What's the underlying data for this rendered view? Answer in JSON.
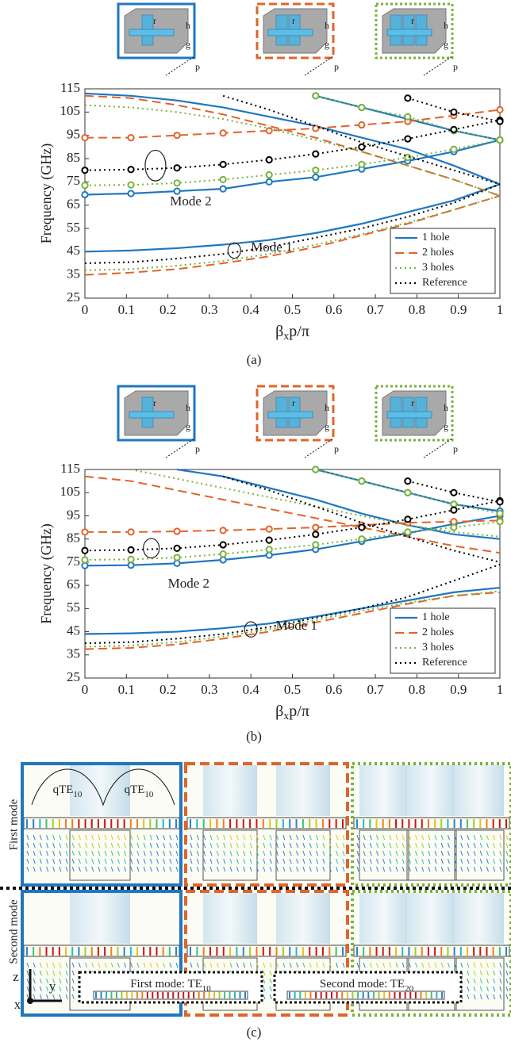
{
  "chart_data": [
    {
      "type": "line",
      "caption": "(a)",
      "x_label": [
        "β",
        "x",
        "p/π"
      ],
      "y_label": "Frequency (GHz)",
      "x": [
        0,
        0.111,
        0.222,
        0.333,
        0.444,
        0.556,
        0.667,
        0.778,
        0.889,
        1
      ],
      "xlim": [
        0,
        1
      ],
      "xticks": [
        0,
        0.1,
        0.2,
        0.3,
        0.4,
        0.5,
        0.6,
        0.7,
        0.8,
        0.9,
        1
      ],
      "ylim": [
        25,
        115
      ],
      "yticks": [
        25,
        35,
        45,
        55,
        65,
        75,
        85,
        95,
        105,
        115
      ],
      "legend": "lower right",
      "annotations": [
        "Mode 2",
        "Mode 1"
      ],
      "inset_labels": [
        "r",
        "h",
        "g",
        "p"
      ],
      "series": [
        {
          "name": "1 hole",
          "color": "#1f77c0",
          "style": "solid",
          "curves": [
            {
              "markers": false,
              "values": [
                45,
                45.5,
                46.5,
                48,
                50,
                53,
                57,
                62,
                67,
                74
              ]
            },
            {
              "markers": true,
              "values": [
                69.5,
                70,
                71,
                72,
                75,
                77,
                80.5,
                84,
                88,
                93
              ]
            },
            {
              "markers": false,
              "values": [
                113,
                112,
                110,
                107,
                103,
                99,
                94,
                89,
                82,
                74
              ]
            },
            {
              "markers": true,
              "values": [
                null,
                null,
                null,
                null,
                null,
                112,
                107,
                102,
                97,
                93
              ]
            }
          ]
        },
        {
          "name": "2 holes",
          "color": "#e0642a",
          "style": "dashed",
          "curves": [
            {
              "markers": false,
              "values": [
                35,
                36,
                37.5,
                40,
                43,
                47,
                52,
                57,
                63,
                69
              ]
            },
            {
              "markers": true,
              "values": [
                94,
                94,
                95,
                96,
                97,
                98,
                99.5,
                101,
                103.5,
                106
              ]
            },
            {
              "markers": false,
              "values": [
                112,
                111,
                108,
                104,
                99,
                94,
                88,
                82,
                76,
                69
              ]
            }
          ]
        },
        {
          "name": "3 holes",
          "color": "#7ab23c",
          "style": "dotted",
          "curves": [
            {
              "markers": false,
              "values": [
                37,
                37.5,
                39,
                41,
                44,
                48,
                52.5,
                57.5,
                63,
                69
              ]
            },
            {
              "markers": true,
              "values": [
                73.5,
                73.7,
                74.5,
                76,
                78,
                80,
                82.5,
                85.5,
                89,
                93
              ]
            },
            {
              "markers": false,
              "values": [
                108,
                107,
                105,
                102,
                98,
                93,
                88,
                82,
                76,
                69
              ]
            },
            {
              "markers": true,
              "values": [
                null,
                null,
                null,
                null,
                null,
                112,
                107,
                103,
                97,
                93
              ]
            }
          ]
        },
        {
          "name": "Reference",
          "color": "#000000",
          "style": "dotted",
          "curves": [
            {
              "markers": false,
              "values": [
                40,
                40.5,
                42,
                44,
                47,
                51,
                55,
                60,
                66,
                74
              ]
            },
            {
              "markers": true,
              "values": [
                80,
                80.3,
                81,
                82.5,
                84.5,
                87,
                90,
                93.5,
                97.5,
                101.5
              ]
            },
            {
              "markers": false,
              "values": [
                null,
                null,
                null,
                112,
                106,
                99,
                92,
                86,
                80,
                74
              ]
            },
            {
              "markers": true,
              "values": [
                null,
                null,
                null,
                null,
                null,
                null,
                null,
                111,
                105,
                101
              ]
            }
          ]
        }
      ]
    },
    {
      "type": "line",
      "caption": "(b)",
      "x_label": [
        "β",
        "x",
        "p/π"
      ],
      "y_label": "Frequency (GHz)",
      "x": [
        0,
        0.111,
        0.222,
        0.333,
        0.444,
        0.556,
        0.667,
        0.778,
        0.889,
        1
      ],
      "xlim": [
        0,
        1
      ],
      "xticks": [
        0,
        0.1,
        0.2,
        0.3,
        0.4,
        0.5,
        0.6,
        0.7,
        0.8,
        0.9,
        1
      ],
      "ylim": [
        25,
        115
      ],
      "yticks": [
        25,
        35,
        45,
        55,
        65,
        75,
        85,
        95,
        105,
        115
      ],
      "legend": "lower right",
      "annotations": [
        "Mode 2",
        "Mode 1"
      ],
      "inset_labels": [
        "r",
        "h",
        "g",
        "p"
      ],
      "series": [
        {
          "name": "1 hole",
          "color": "#1f77c0",
          "style": "solid",
          "curves": [
            {
              "markers": false,
              "values": [
                44,
                44.3,
                45,
                46.5,
                48.5,
                51.5,
                55,
                58.5,
                62,
                64
              ]
            },
            {
              "markers": true,
              "values": [
                73.5,
                73.7,
                74.5,
                76,
                78,
                80.5,
                84,
                87.5,
                91.5,
                95
              ]
            },
            {
              "markers": false,
              "values": [
                null,
                null,
                115,
                112,
                107,
                102,
                96,
                91,
                87,
                85
              ]
            },
            {
              "markers": true,
              "values": [
                null,
                null,
                null,
                null,
                null,
                115,
                110,
                105,
                100,
                97
              ]
            }
          ]
        },
        {
          "name": "2 holes",
          "color": "#e0642a",
          "style": "dashed",
          "curves": [
            {
              "markers": false,
              "values": [
                37.5,
                38,
                39.5,
                42,
                45,
                49,
                53,
                57,
                60.5,
                62
              ]
            },
            {
              "markers": true,
              "values": [
                88,
                88,
                88.3,
                88.7,
                89.3,
                90,
                91,
                92,
                92.5,
                93
              ]
            },
            {
              "markers": false,
              "values": [
                112,
                110,
                106,
                102,
                98,
                94,
                90,
                86,
                82,
                79
              ]
            }
          ]
        },
        {
          "name": "3 holes",
          "color": "#7ab23c",
          "style": "dotted",
          "curves": [
            {
              "markers": false,
              "values": [
                38.5,
                39,
                40.5,
                43,
                46,
                50,
                54,
                57.5,
                60.5,
                62.5
              ]
            },
            {
              "markers": true,
              "values": [
                76,
                76.2,
                77,
                78.5,
                80.5,
                82.5,
                85,
                88,
                90,
                92.5
              ]
            },
            {
              "markers": false,
              "values": [
                null,
                115,
                111,
                107,
                103,
                99,
                95,
                91,
                88,
                86
              ]
            },
            {
              "markers": true,
              "values": [
                null,
                null,
                null,
                null,
                null,
                115,
                110,
                105,
                100,
                96
              ]
            }
          ]
        },
        {
          "name": "Reference",
          "color": "#000000",
          "style": "dotted",
          "curves": [
            {
              "markers": false,
              "values": [
                40,
                40.5,
                42,
                44,
                47,
                51,
                55,
                60,
                67,
                74
              ]
            },
            {
              "markers": true,
              "values": [
                80,
                80.3,
                81,
                82.5,
                84.5,
                87,
                90,
                93.5,
                97.5,
                101.5
              ]
            },
            {
              "markers": false,
              "values": [
                null,
                null,
                null,
                112,
                106,
                99,
                92,
                86,
                80,
                75
              ]
            },
            {
              "markers": true,
              "values": [
                null,
                null,
                null,
                null,
                null,
                null,
                null,
                110,
                105,
                101
              ]
            }
          ]
        }
      ]
    }
  ],
  "panel_c": {
    "caption": "(c)",
    "row_labels": [
      "First mode",
      "Second mode"
    ],
    "wave_label": [
      "qTE",
      "10"
    ],
    "axes": [
      "z",
      "y",
      "x"
    ],
    "first_mode": [
      "First mode: TE",
      "10"
    ],
    "second_mode": [
      "Second mode: TE",
      "20"
    ]
  }
}
